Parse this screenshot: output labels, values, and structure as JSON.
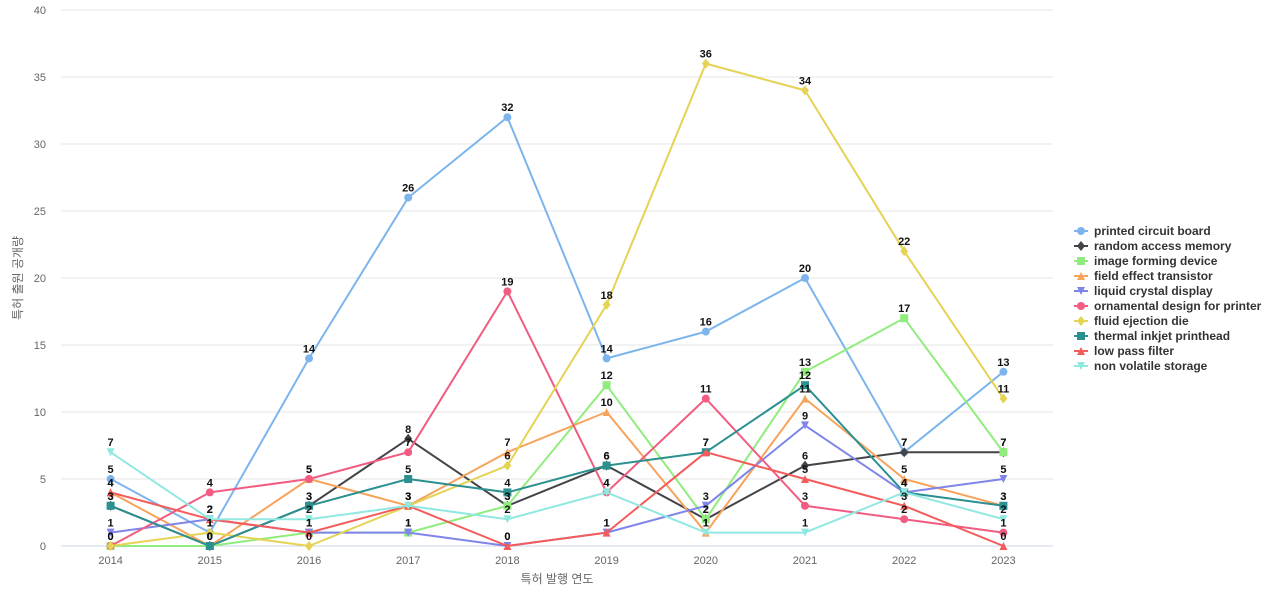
{
  "chart_data": {
    "type": "line",
    "title": "",
    "xlabel": "특허 발행 연도",
    "ylabel": "특허 출원 공개량",
    "ylim": [
      0,
      40
    ],
    "yticks": [
      0,
      5,
      10,
      15,
      20,
      25,
      30,
      35,
      40
    ],
    "grid": true,
    "legend_position": "right",
    "show_data_labels": true,
    "categories": [
      "2014",
      "2015",
      "2016",
      "2017",
      "2018",
      "2019",
      "2020",
      "2021",
      "2022",
      "2023"
    ],
    "series": [
      {
        "name": "printed circuit board",
        "color": "#7cb5ec",
        "marker": "circle",
        "values": [
          5,
          1,
          14,
          26,
          32,
          14,
          16,
          20,
          7,
          13
        ]
      },
      {
        "name": "random access memory",
        "color": "#434348",
        "marker": "diamond",
        "values": [
          3,
          0,
          3,
          8,
          3,
          6,
          2,
          6,
          7,
          7
        ]
      },
      {
        "name": "image forming device",
        "color": "#90ed7d",
        "marker": "square",
        "values": [
          0,
          0,
          1,
          1,
          3,
          12,
          2,
          13,
          17,
          7
        ]
      },
      {
        "name": "field effect transistor",
        "color": "#f7a35c",
        "marker": "triangle",
        "values": [
          4,
          0,
          5,
          3,
          7,
          10,
          1,
          11,
          5,
          3
        ]
      },
      {
        "name": "liquid crystal display",
        "color": "#8085e9",
        "marker": "triangle-down",
        "values": [
          1,
          2,
          1,
          1,
          0,
          1,
          3,
          9,
          4,
          5
        ]
      },
      {
        "name": "ornamental design for printer",
        "color": "#f15c80",
        "marker": "circle",
        "values": [
          0,
          4,
          5,
          7,
          19,
          4,
          11,
          3,
          2,
          1
        ]
      },
      {
        "name": "fluid ejection die",
        "color": "#e4d354",
        "marker": "diamond",
        "values": [
          0,
          1,
          0,
          3,
          6,
          18,
          36,
          34,
          22,
          11
        ]
      },
      {
        "name": "thermal inkjet printhead",
        "color": "#2b908f",
        "marker": "square",
        "values": [
          3,
          0,
          3,
          5,
          4,
          6,
          7,
          12,
          4,
          3
        ]
      },
      {
        "name": "low pass filter",
        "color": "#f45b5b",
        "marker": "triangle",
        "values": [
          4,
          2,
          1,
          3,
          0,
          1,
          7,
          5,
          3,
          0
        ]
      },
      {
        "name": "non volatile storage",
        "color": "#91e8e1",
        "marker": "triangle-down",
        "values": [
          7,
          2,
          2,
          3,
          2,
          4,
          1,
          1,
          4,
          2
        ]
      }
    ]
  }
}
